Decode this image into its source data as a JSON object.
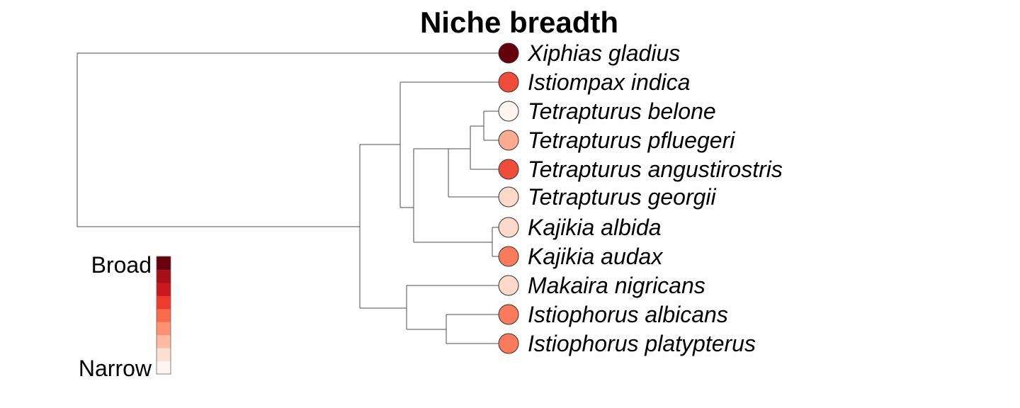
{
  "title": "Niche breadth",
  "legend": {
    "high_label": "Broad",
    "low_label": "Narrow",
    "colors": [
      "#fff5f0",
      "#fee0d2",
      "#fcbba1",
      "#fc9272",
      "#fb6a4a",
      "#ef3b2c",
      "#cb181d",
      "#a50f15",
      "#67000d"
    ]
  },
  "tips": [
    {
      "name": "Xiphias gladius",
      "color": "#67000d"
    },
    {
      "name": "Istiompax indica",
      "color": "#f14c3a"
    },
    {
      "name": "Tetrapturus belone",
      "color": "#fff5f0"
    },
    {
      "name": "Tetrapturus pfluegeri",
      "color": "#fcab8e"
    },
    {
      "name": "Tetrapturus angustirostris",
      "color": "#f14c3a"
    },
    {
      "name": "Tetrapturus georgii",
      "color": "#fdd9c9"
    },
    {
      "name": "Kajikia albida",
      "color": "#fdd9c9"
    },
    {
      "name": "Kajikia audax",
      "color": "#fb7a5c"
    },
    {
      "name": "Makaira nigricans",
      "color": "#fdd9c9"
    },
    {
      "name": "Istiophorus albicans",
      "color": "#fb7a5c"
    },
    {
      "name": "Istiophorus platypterus",
      "color": "#fb7a5c"
    }
  ]
}
